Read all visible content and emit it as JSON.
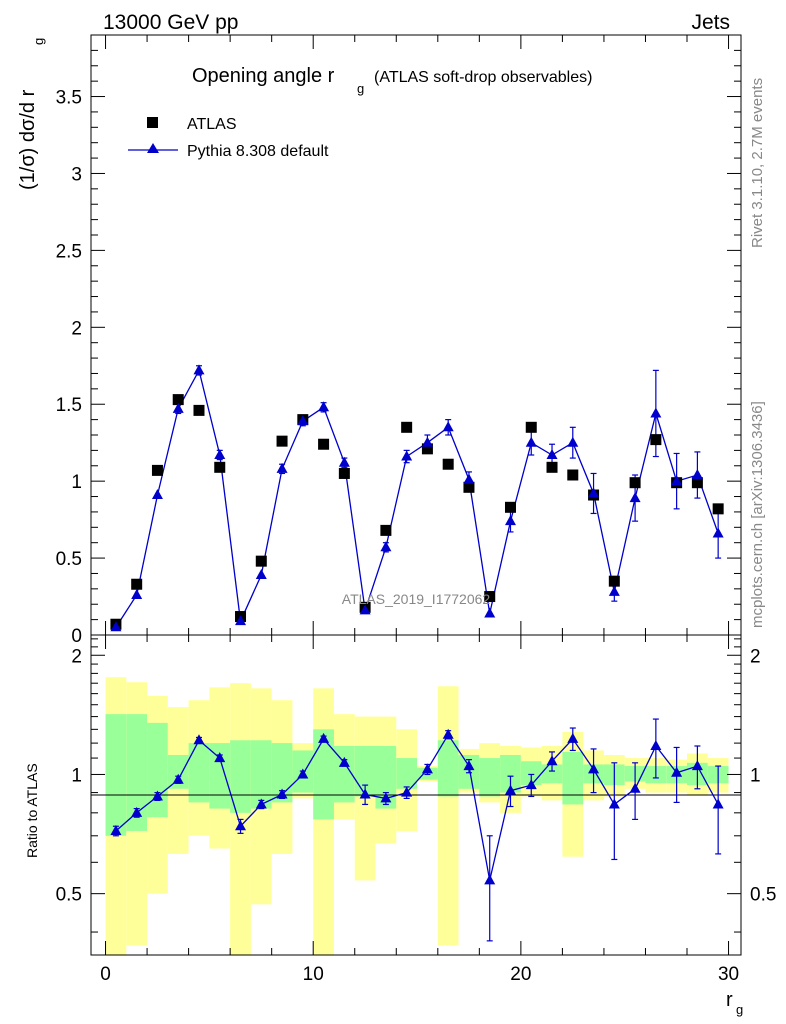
{
  "header": {
    "left": "13000 GeV pp",
    "right": "Jets"
  },
  "side_labels": {
    "rivet": "Rivet 3.1.10,  2.7M events",
    "mcplots": "mcplots.cern.ch [arXiv:1306.3436]"
  },
  "chart_data": {
    "type": "scatter",
    "title": "Opening angle r",
    "title_subscript": "g",
    "title_suffix": "(ATLAS soft-drop observables)",
    "watermark": "ATLAS_2019_I1772062",
    "ylabel": "(1/σ) dσ/d r",
    "ylabel_subscript": "g",
    "xlabel": "r",
    "xlabel_subscript": "g",
    "ratio_ylabel": "Ratio to ATLAS",
    "xlim": [
      -0.7,
      30.6
    ],
    "ylim": [
      0,
      3.9
    ],
    "ratio_ylim": [
      0.35,
      2.25
    ],
    "x_ticks": [
      "0",
      "10",
      "20",
      "30"
    ],
    "y_ticks": [
      "0",
      "0.5",
      "1",
      "1.5",
      "2",
      "2.5",
      "3",
      "3.5"
    ],
    "ratio_y_ticks": [
      "0.5",
      "1",
      "2"
    ],
    "legend_position": "top-left",
    "colors": {
      "data": "#000000",
      "mc": "#0000cc",
      "band_inner": "#99ff99",
      "band_outer": "#ffff99"
    },
    "series": [
      {
        "name": "ATLAS",
        "marker": "square",
        "x": [
          0.5,
          1.5,
          2.5,
          3.5,
          4.5,
          5.5,
          6.5,
          7.5,
          8.5,
          9.5,
          10.5,
          11.5,
          12.5,
          13.5,
          14.5,
          15.5,
          16.5,
          17.5,
          18.5,
          19.5,
          20.5,
          21.5,
          22.5,
          23.5,
          24.5,
          25.5,
          26.5,
          27.5,
          28.5,
          29.5
        ],
        "y": [
          0.07,
          0.33,
          1.07,
          1.53,
          1.46,
          1.09,
          0.12,
          0.48,
          1.26,
          1.4,
          1.24,
          1.05,
          0.18,
          0.68,
          1.35,
          1.21,
          1.11,
          0.96,
          0.25,
          0.83,
          1.35,
          1.09,
          1.04,
          0.91,
          0.35,
          0.99,
          1.27,
          0.99,
          0.99,
          0.82
        ]
      },
      {
        "name": "Pythia 8.308 default",
        "marker": "triangle",
        "x": [
          0.5,
          1.5,
          2.5,
          3.5,
          4.5,
          5.5,
          6.5,
          7.5,
          8.5,
          9.5,
          10.5,
          11.5,
          12.5,
          13.5,
          14.5,
          15.5,
          16.5,
          17.5,
          18.5,
          19.5,
          20.5,
          21.5,
          22.5,
          23.5,
          24.5,
          25.5,
          26.5,
          27.5,
          28.5,
          29.5
        ],
        "y": [
          0.05,
          0.26,
          0.91,
          1.47,
          1.72,
          1.17,
          0.09,
          0.39,
          1.08,
          1.39,
          1.48,
          1.12,
          0.16,
          0.57,
          1.16,
          1.25,
          1.35,
          1.01,
          0.14,
          0.74,
          1.25,
          1.17,
          1.25,
          0.92,
          0.28,
          0.89,
          1.44,
          1.0,
          1.04,
          0.66
        ],
        "y_err": [
          0.005,
          0.01,
          0.02,
          0.03,
          0.03,
          0.03,
          0.01,
          0.02,
          0.03,
          0.03,
          0.03,
          0.03,
          0.01,
          0.03,
          0.04,
          0.05,
          0.05,
          0.05,
          0.02,
          0.07,
          0.08,
          0.07,
          0.1,
          0.13,
          0.06,
          0.15,
          0.28,
          0.18,
          0.15,
          0.16
        ]
      }
    ],
    "ratio": {
      "x": [
        0.5,
        1.5,
        2.5,
        3.5,
        4.5,
        5.5,
        6.5,
        7.5,
        8.5,
        9.5,
        10.5,
        11.5,
        12.5,
        13.5,
        14.5,
        15.5,
        16.5,
        17.5,
        18.5,
        19.5,
        20.5,
        21.5,
        22.5,
        23.5,
        24.5,
        25.5,
        26.5,
        27.5,
        28.5,
        29.5
      ],
      "y": [
        0.72,
        0.8,
        0.88,
        0.97,
        1.22,
        1.1,
        0.74,
        0.84,
        0.89,
        1.0,
        1.23,
        1.07,
        0.89,
        0.87,
        0.9,
        1.03,
        1.26,
        1.05,
        0.54,
        0.91,
        0.94,
        1.08,
        1.23,
        1.03,
        0.84,
        0.92,
        1.18,
        1.01,
        1.05,
        0.84
      ],
      "y_err": [
        0.02,
        0.02,
        0.02,
        0.02,
        0.02,
        0.02,
        0.03,
        0.02,
        0.02,
        0.02,
        0.02,
        0.02,
        0.05,
        0.03,
        0.03,
        0.03,
        0.03,
        0.04,
        0.16,
        0.08,
        0.06,
        0.06,
        0.08,
        0.13,
        0.23,
        0.15,
        0.2,
        0.16,
        0.13,
        0.21
      ],
      "band_inner": [
        [
          0.7,
          1.42
        ],
        [
          0.72,
          1.42
        ],
        [
          0.78,
          1.35
        ],
        [
          0.92,
          1.12
        ],
        [
          0.85,
          1.2
        ],
        [
          0.82,
          1.2
        ],
        [
          0.8,
          1.22
        ],
        [
          0.82,
          1.22
        ],
        [
          0.85,
          1.2
        ],
        [
          0.9,
          1.15
        ],
        [
          0.77,
          1.3
        ],
        [
          0.85,
          1.18
        ],
        [
          0.88,
          1.18
        ],
        [
          0.82,
          1.18
        ],
        [
          0.92,
          1.1
        ],
        [
          0.97,
          1.04
        ],
        [
          0.88,
          1.22
        ],
        [
          0.92,
          1.12
        ],
        [
          0.88,
          1.1
        ],
        [
          0.9,
          1.12
        ],
        [
          0.94,
          1.08
        ],
        [
          0.95,
          1.06
        ],
        [
          0.84,
          1.14
        ],
        [
          0.95,
          1.06
        ],
        [
          0.94,
          1.06
        ],
        [
          0.96,
          1.05
        ],
        [
          0.95,
          1.05
        ],
        [
          0.95,
          1.05
        ],
        [
          0.94,
          1.07
        ],
        [
          0.95,
          1.05
        ]
      ],
      "band_outer": [
        [
          0.35,
          1.76
        ],
        [
          0.37,
          1.71
        ],
        [
          0.5,
          1.58
        ],
        [
          0.63,
          1.48
        ],
        [
          0.7,
          1.54
        ],
        [
          0.65,
          1.66
        ],
        [
          0.35,
          1.7
        ],
        [
          0.47,
          1.65
        ],
        [
          0.63,
          1.54
        ],
        [
          0.87,
          1.2
        ],
        [
          0.3,
          1.65
        ],
        [
          0.77,
          1.42
        ],
        [
          0.54,
          1.4
        ],
        [
          0.67,
          1.4
        ],
        [
          0.72,
          1.3
        ],
        [
          0.96,
          1.05
        ],
        [
          0.37,
          1.67
        ],
        [
          0.9,
          1.16
        ],
        [
          0.85,
          1.2
        ],
        [
          0.8,
          1.18
        ],
        [
          0.88,
          1.17
        ],
        [
          0.86,
          1.18
        ],
        [
          0.62,
          1.28
        ],
        [
          0.86,
          1.15
        ],
        [
          0.88,
          1.12
        ],
        [
          0.92,
          1.1
        ],
        [
          0.9,
          1.1
        ],
        [
          0.9,
          1.09
        ],
        [
          0.89,
          1.13
        ],
        [
          0.9,
          1.1
        ]
      ]
    }
  }
}
